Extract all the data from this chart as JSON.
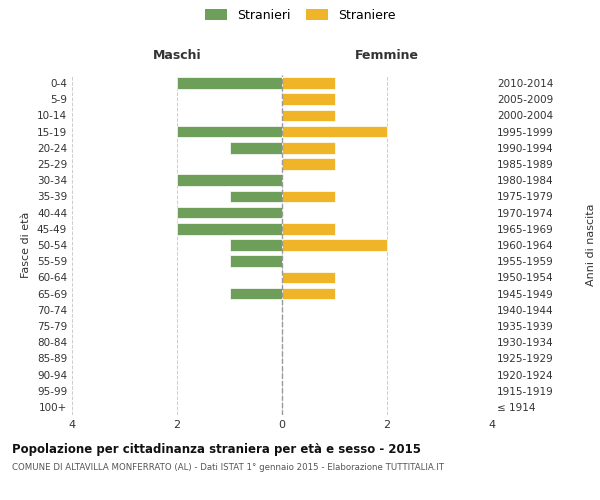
{
  "age_groups": [
    "100+",
    "95-99",
    "90-94",
    "85-89",
    "80-84",
    "75-79",
    "70-74",
    "65-69",
    "60-64",
    "55-59",
    "50-54",
    "45-49",
    "40-44",
    "35-39",
    "30-34",
    "25-29",
    "20-24",
    "15-19",
    "10-14",
    "5-9",
    "0-4"
  ],
  "birth_years": [
    "≤ 1914",
    "1915-1919",
    "1920-1924",
    "1925-1929",
    "1930-1934",
    "1935-1939",
    "1940-1944",
    "1945-1949",
    "1950-1954",
    "1955-1959",
    "1960-1964",
    "1965-1969",
    "1970-1974",
    "1975-1979",
    "1980-1984",
    "1985-1989",
    "1990-1994",
    "1995-1999",
    "2000-2004",
    "2005-2009",
    "2010-2014"
  ],
  "males": [
    0,
    0,
    0,
    0,
    0,
    0,
    0,
    1,
    0,
    1,
    1,
    2,
    2,
    1,
    2,
    0,
    1,
    2,
    0,
    0,
    2
  ],
  "females": [
    0,
    0,
    0,
    0,
    0,
    0,
    0,
    1,
    1,
    0,
    2,
    1,
    0,
    1,
    0,
    1,
    1,
    2,
    1,
    1,
    1
  ],
  "male_color": "#6d9e5a",
  "female_color": "#f0b429",
  "center_line_color": "#999999",
  "grid_color": "#cccccc",
  "title": "Popolazione per cittadinanza straniera per età e sesso - 2015",
  "subtitle": "COMUNE DI ALTAVILLA MONFERRATO (AL) - Dati ISTAT 1° gennaio 2015 - Elaborazione TUTTITALIA.IT",
  "legend_male": "Stranieri",
  "legend_female": "Straniere",
  "xlabel_left": "Maschi",
  "xlabel_right": "Femmine",
  "ylabel_left": "Fasce di età",
  "ylabel_right": "Anni di nascita",
  "xlim": 4,
  "background_color": "#ffffff"
}
